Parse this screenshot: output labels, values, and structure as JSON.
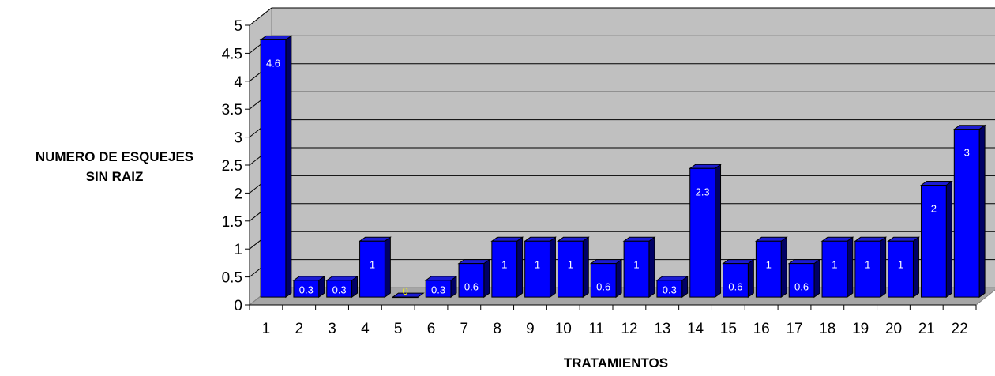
{
  "chart_data": {
    "type": "bar",
    "style": "3d-column",
    "categories": [
      "1",
      "2",
      "3",
      "4",
      "5",
      "6",
      "7",
      "8",
      "9",
      "10",
      "11",
      "12",
      "13",
      "14",
      "15",
      "16",
      "17",
      "18",
      "19",
      "20",
      "21",
      "22"
    ],
    "values": [
      4.6,
      0.3,
      0.3,
      1,
      0,
      0.3,
      0.6,
      1,
      1,
      1,
      0.6,
      1,
      0.3,
      2.3,
      0.6,
      1,
      0.6,
      1,
      1,
      1,
      2,
      3
    ],
    "data_labels": [
      "4.6",
      "0.3",
      "0.3",
      "1",
      "0",
      "0.3",
      "0.6",
      "1",
      "1",
      "1",
      "0.6",
      "1",
      "0.3",
      "2.3",
      "0.6",
      "1",
      "0.6",
      "1",
      "1",
      "1",
      "2",
      "3"
    ],
    "yticks": [
      "0",
      "0.5",
      "1",
      "1.5",
      "2",
      "2.5",
      "3",
      "3.5",
      "4",
      "4.5",
      "5"
    ],
    "ylim": [
      0,
      5
    ],
    "xlabel": "TRATAMIENTOS",
    "ylabel_lines": [
      "NUMERO DE ESQUEJES",
      "SIN RAIZ"
    ],
    "grid": true,
    "legend": "none",
    "colors": {
      "bar_front": "#0000ff",
      "bar_top": "#1c1cd2",
      "bar_side": "#000066",
      "plot_back": "#c0c0c0",
      "plot_floor": "#a6a6a6",
      "label_text": "#ffffff",
      "zero_label_text": "#ffff00"
    }
  }
}
